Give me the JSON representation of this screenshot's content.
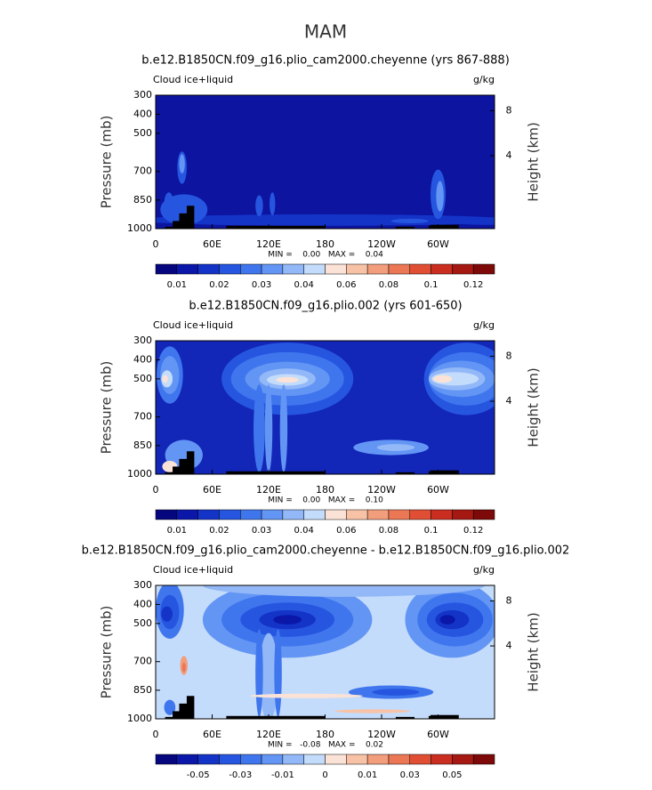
{
  "title": "MAM",
  "chart_data": [
    {
      "type": "contour",
      "subtitle": "b.e12.B1850CN.f09_g16.plio_cam2000.cheyenne (yrs 867-888)",
      "left_label": "Cloud ice+liquid",
      "right_label": "g/kg",
      "ylabel": "Pressure (mb)",
      "y2label": "Height (km)",
      "xlim": [
        0,
        360
      ],
      "xticks": [
        0,
        {
          "value": 60,
          "label": "60E"
        },
        {
          "value": 120,
          "label": "120E"
        },
        180,
        {
          "value": 240,
          "label": "120W"
        },
        {
          "value": 300,
          "label": "60W"
        }
      ],
      "ylim": [
        1000,
        300
      ],
      "yticks": [
        300,
        400,
        500,
        700,
        850,
        1000
      ],
      "y2ticks": [
        8,
        4
      ],
      "stats": "MIN =    0.00   MAX =    0.04",
      "colorbar_ticks": [
        0.01,
        0.02,
        0.03,
        0.04,
        0.06,
        0.08,
        0.1,
        0.12
      ],
      "background_color": "#0c14a0",
      "colors": [
        "#06067e",
        "#0a17a8",
        "#1434c8",
        "#2656e0",
        "#3f76ee",
        "#6395f4",
        "#93b8f8",
        "#c4dcfb",
        "#fbe2d6",
        "#f8c2a6",
        "#f29d7c",
        "#eb7754",
        "#e04f33",
        "#c92e20",
        "#a61812",
        "#7d0909"
      ]
    },
    {
      "type": "contour",
      "subtitle": "b.e12.B1850CN.f09_g16.plio.002 (yrs 601-650)",
      "left_label": "Cloud ice+liquid",
      "right_label": "g/kg",
      "ylabel": "Pressure (mb)",
      "y2label": "Height (km)",
      "xlim": [
        0,
        360
      ],
      "xticks": [
        0,
        {
          "value": 60,
          "label": "60E"
        },
        {
          "value": 120,
          "label": "120E"
        },
        180,
        {
          "value": 240,
          "label": "120W"
        },
        {
          "value": 300,
          "label": "60W"
        }
      ],
      "ylim": [
        1000,
        300
      ],
      "yticks": [
        300,
        400,
        500,
        700,
        850,
        1000
      ],
      "y2ticks": [
        8,
        4
      ],
      "stats": "MIN =    0.00   MAX =    0.10",
      "colorbar_ticks": [
        0.01,
        0.02,
        0.03,
        0.04,
        0.06,
        0.08,
        0.1,
        0.12
      ],
      "background_color": "#1226b8",
      "colors": [
        "#06067e",
        "#0a17a8",
        "#1434c8",
        "#2656e0",
        "#3f76ee",
        "#6395f4",
        "#93b8f8",
        "#c4dcfb",
        "#fbe2d6",
        "#f8c2a6",
        "#f29d7c",
        "#eb7754",
        "#e04f33",
        "#c92e20",
        "#a61812",
        "#7d0909"
      ]
    },
    {
      "type": "contour",
      "subtitle": "b.e12.B1850CN.f09_g16.plio_cam2000.cheyenne - b.e12.B1850CN.f09_g16.plio.002",
      "left_label": "Cloud ice+liquid",
      "right_label": "g/kg",
      "ylabel": "Pressure (mb)",
      "y2label": "Height (km)",
      "xlim": [
        0,
        360
      ],
      "xticks": [
        0,
        {
          "value": 60,
          "label": "60E"
        },
        {
          "value": 120,
          "label": "120E"
        },
        180,
        {
          "value": 240,
          "label": "120W"
        },
        {
          "value": 300,
          "label": "60W"
        }
      ],
      "ylim": [
        1000,
        300
      ],
      "yticks": [
        300,
        400,
        500,
        700,
        850,
        1000
      ],
      "y2ticks": [
        8,
        4
      ],
      "stats": "MIN =   -0.08   MAX =    0.02",
      "colorbar_ticks": [
        -0.05,
        -0.03,
        -0.01,
        0,
        0.01,
        0.03,
        0.05
      ],
      "background_color": "#c4dcfb",
      "colors": [
        "#06067e",
        "#0a17a8",
        "#1434c8",
        "#2656e0",
        "#3f76ee",
        "#6395f4",
        "#93b8f8",
        "#c4dcfb",
        "#fbe2d6",
        "#f8c2a6",
        "#f29d7c",
        "#eb7754",
        "#e04f33",
        "#c92e20",
        "#a61812",
        "#7d0909"
      ]
    }
  ]
}
